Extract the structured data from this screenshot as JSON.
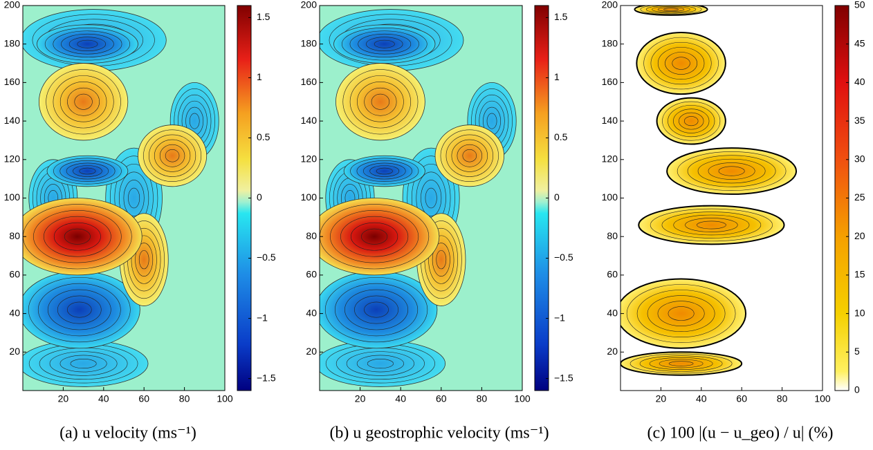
{
  "chart_data": [
    {
      "type": "contour",
      "caption": "(a) u velocity (ms⁻¹)",
      "xlim": [
        0,
        100
      ],
      "ylim": [
        0,
        200
      ],
      "xticks": [
        20,
        40,
        60,
        80,
        100
      ],
      "yticks": [
        20,
        40,
        60,
        80,
        100,
        120,
        140,
        160,
        180,
        200
      ],
      "colormap": "diverging",
      "colorbar": {
        "clim": [
          -1.6,
          1.6
        ],
        "ticks": [
          {
            "value": -1.5,
            "label": "−1.5"
          },
          {
            "value": -1,
            "label": "−1"
          },
          {
            "value": -0.5,
            "label": "−0.5"
          },
          0,
          0.5,
          1,
          1.5
        ]
      }
    },
    {
      "type": "contour",
      "caption": "(b) u geostrophic velocity (ms⁻¹)",
      "xlim": [
        0,
        100
      ],
      "ylim": [
        0,
        200
      ],
      "xticks": [
        20,
        40,
        60,
        80,
        100
      ],
      "yticks": [
        20,
        40,
        60,
        80,
        100,
        120,
        140,
        160,
        180,
        200
      ],
      "colormap": "diverging",
      "colorbar": {
        "clim": [
          -1.6,
          1.6
        ],
        "ticks": [
          {
            "value": -1.5,
            "label": "−1.5"
          },
          {
            "value": -1,
            "label": "−1"
          },
          {
            "value": -0.5,
            "label": "−0.5"
          },
          0,
          0.5,
          1,
          1.5
        ]
      }
    },
    {
      "type": "contour",
      "caption": "(c) 100 |(u − u_geo) / u| (%)",
      "xlim": [
        0,
        100
      ],
      "ylim": [
        0,
        200
      ],
      "xticks": [
        20,
        40,
        60,
        80,
        100
      ],
      "yticks": [
        20,
        40,
        60,
        80,
        100,
        120,
        140,
        160,
        180,
        200
      ],
      "colormap": "sequential",
      "colorbar": {
        "clim": [
          0,
          50
        ],
        "ticks": [
          0,
          5,
          10,
          15,
          20,
          25,
          30,
          35,
          40,
          45,
          50
        ]
      }
    }
  ]
}
